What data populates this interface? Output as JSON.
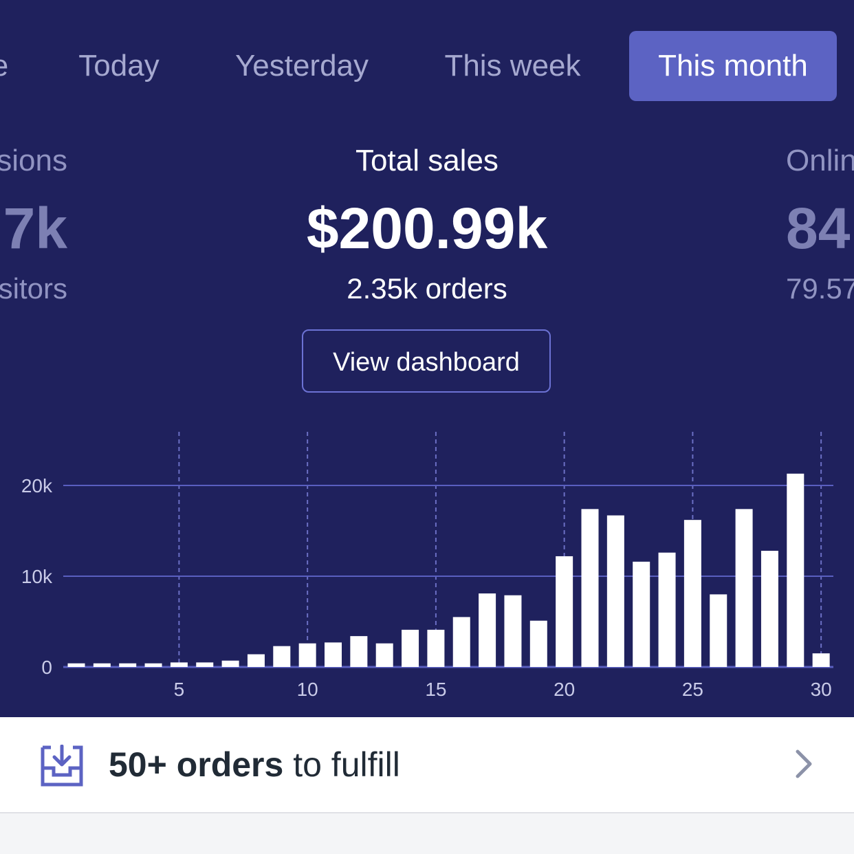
{
  "tabs": [
    {
      "label": "e",
      "active": false
    },
    {
      "label": "Today",
      "active": false
    },
    {
      "label": "Yesterday",
      "active": false
    },
    {
      "label": "This week",
      "active": false
    },
    {
      "label": "This month",
      "active": true
    }
  ],
  "metrics": {
    "left": {
      "label": "sions",
      "value": "7k",
      "sub": "sitors"
    },
    "main": {
      "label": "Total sales",
      "value": "$200.99k",
      "sub": "2.35k orders"
    },
    "right": {
      "label": "Onlin",
      "value": "84",
      "sub": "79.57"
    }
  },
  "dashboard_button": {
    "label": "View dashboard"
  },
  "chart_data": {
    "type": "bar",
    "x": [
      1,
      2,
      3,
      4,
      5,
      6,
      7,
      8,
      9,
      10,
      11,
      12,
      13,
      14,
      15,
      16,
      17,
      18,
      19,
      20,
      21,
      22,
      23,
      24,
      25,
      26,
      27,
      28,
      29,
      30
    ],
    "values": [
      400,
      400,
      400,
      400,
      500,
      500,
      700,
      1400,
      2300,
      2600,
      2700,
      3400,
      2600,
      4100,
      4100,
      5500,
      8100,
      7900,
      5100,
      12200,
      17400,
      16700,
      11600,
      12600,
      16200,
      8000,
      17400,
      12800,
      21300,
      1500
    ],
    "xticks": [
      5,
      10,
      15,
      20,
      25,
      30
    ],
    "yticks": [
      0,
      10000,
      20000
    ],
    "ytick_labels": [
      "0",
      "10k",
      "20k"
    ],
    "ylim": [
      0,
      20000
    ],
    "grid": true,
    "colors": {
      "bar": "#ffffff",
      "gridline": "#5a5fc0",
      "vertical_guides": "#6b6fc4"
    }
  },
  "footer": {
    "icon": "inbox-download-icon",
    "bold_text": "50+ orders",
    "rest_text": " to fulfill",
    "chevron": "chevron-right-icon"
  },
  "colors": {
    "background": "#1f215d",
    "active_tab": "#5c63c3",
    "accent": "#6c72d4"
  }
}
